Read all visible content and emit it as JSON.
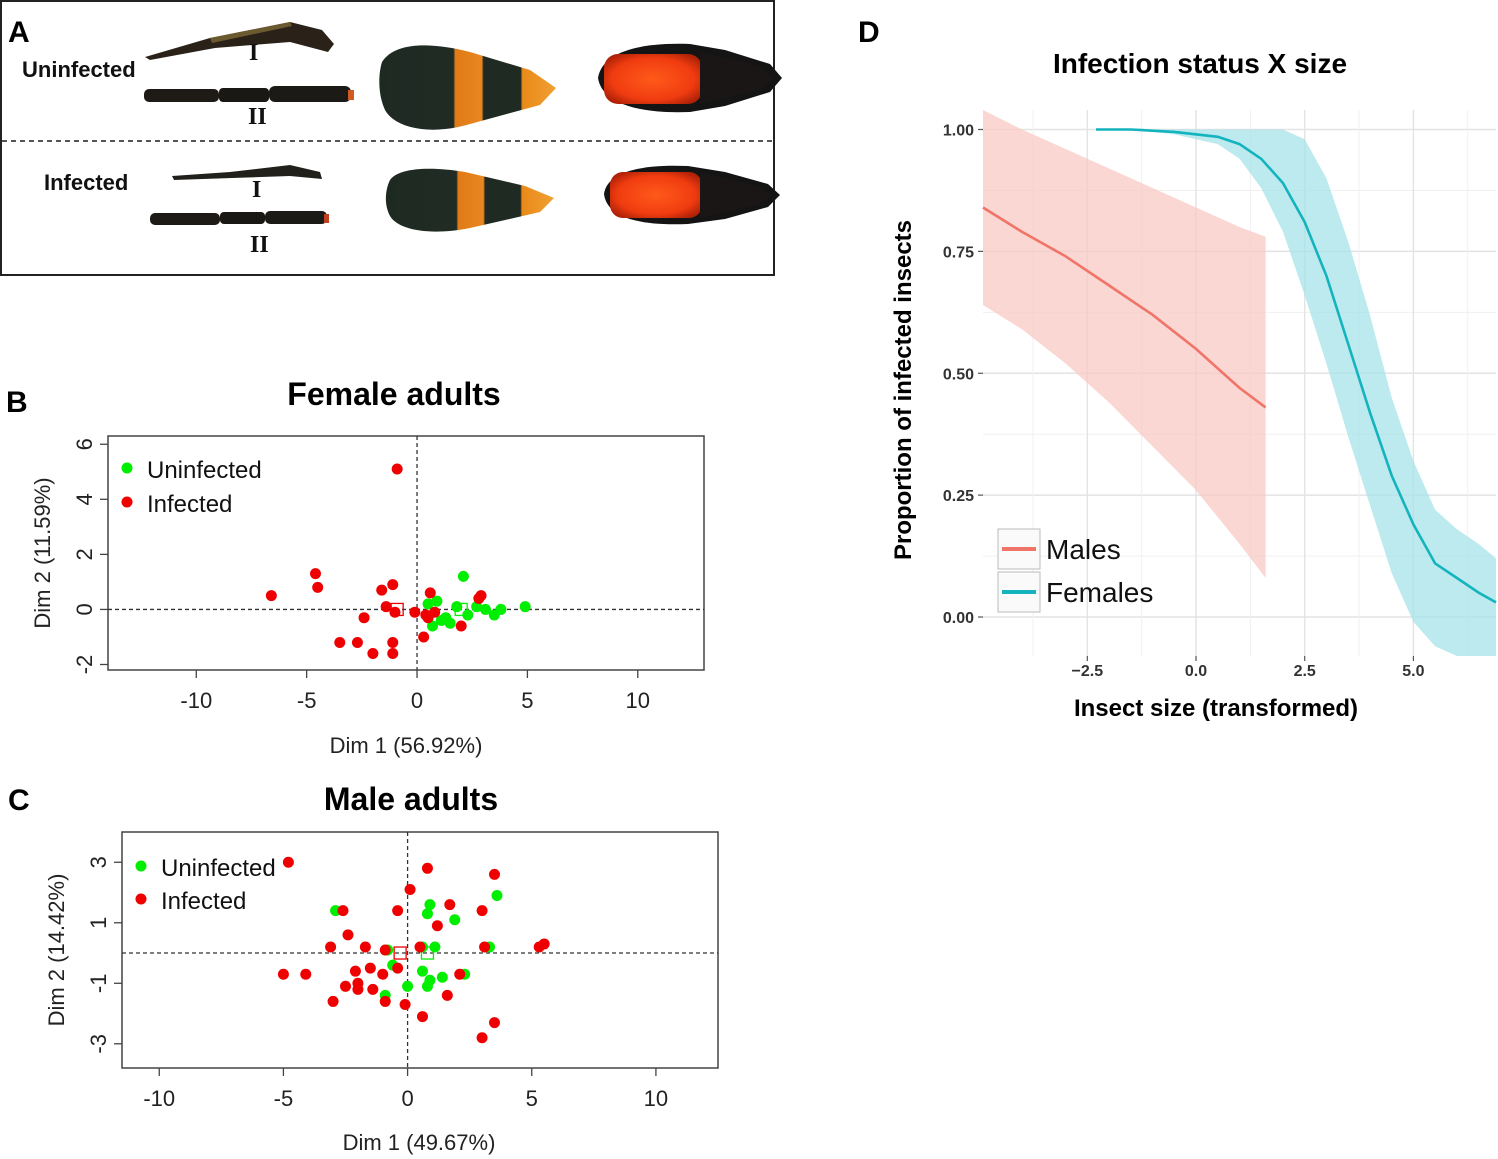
{
  "panels": {
    "A": {
      "label": "A",
      "rows": [
        {
          "status": "Uninfected",
          "antenna_labels": [
            "I",
            "II"
          ]
        },
        {
          "status": "Infected",
          "antenna_labels": [
            "I",
            "II"
          ]
        }
      ]
    },
    "B": {
      "label": "B"
    },
    "C": {
      "label": "C"
    },
    "D": {
      "label": "D"
    }
  },
  "colors": {
    "uninfected": "#00ee00",
    "infected": "#ee0000",
    "males": "#f07468",
    "males_ribbon": "#f8c9c4",
    "females": "#14b4be",
    "females_ribbon": "#a6e3e8"
  },
  "chart_data": [
    {
      "id": "B",
      "type": "scatter",
      "title": "Female adults",
      "xlabel": "Dim 1 (56.92%)",
      "ylabel": "Dim 2 (11.59%)",
      "xlim": [
        -14,
        13
      ],
      "ylim": [
        -2.2,
        6.3
      ],
      "xticks": [
        -10,
        -5,
        0,
        5,
        10
      ],
      "yticks": [
        -2,
        0,
        2,
        4,
        6
      ],
      "legend": {
        "position": "top-left",
        "entries": [
          "Uninfected",
          "Infected"
        ]
      },
      "series": [
        {
          "name": "Uninfected",
          "points": [
            [
              2.1,
              1.2
            ],
            [
              0.5,
              0.2
            ],
            [
              0.9,
              0.3
            ],
            [
              1.3,
              -0.3
            ],
            [
              1.5,
              -0.5
            ],
            [
              1.8,
              0.1
            ],
            [
              2.3,
              -0.2
            ],
            [
              3.1,
              0.0
            ],
            [
              3.5,
              -0.2
            ],
            [
              3.8,
              0.0
            ],
            [
              4.9,
              0.1
            ],
            [
              0.7,
              -0.6
            ],
            [
              1.1,
              -0.4
            ],
            [
              2.7,
              0.1
            ]
          ],
          "centroid": [
            2.0,
            0.0
          ]
        },
        {
          "name": "Infected",
          "points": [
            [
              -0.9,
              5.1
            ],
            [
              -6.6,
              0.5
            ],
            [
              -4.6,
              1.3
            ],
            [
              -4.5,
              0.8
            ],
            [
              -1.6,
              0.7
            ],
            [
              -1.1,
              0.9
            ],
            [
              -1.4,
              0.1
            ],
            [
              -1.0,
              -0.1
            ],
            [
              -0.1,
              -0.1
            ],
            [
              0.4,
              -0.2
            ],
            [
              0.6,
              0.6
            ],
            [
              0.8,
              -0.1
            ],
            [
              2.8,
              0.4
            ],
            [
              2.9,
              0.5
            ],
            [
              -2.4,
              -0.3
            ],
            [
              -3.5,
              -1.2
            ],
            [
              -2.7,
              -1.2
            ],
            [
              -2.0,
              -1.6
            ],
            [
              -1.1,
              -1.2
            ],
            [
              -1.1,
              -1.6
            ],
            [
              0.3,
              -1.0
            ],
            [
              2.0,
              -0.6
            ],
            [
              0.5,
              -0.3
            ]
          ],
          "centroid": [
            -0.9,
            0.0
          ]
        }
      ]
    },
    {
      "id": "C",
      "type": "scatter",
      "title": "Male adults",
      "xlabel": "Dim 1 (49.67%)",
      "ylabel": "Dim 2 (14.42%)",
      "xlim": [
        -11.5,
        12.5
      ],
      "ylim": [
        -3.8,
        4.0
      ],
      "xticks": [
        -10,
        -5,
        0,
        5,
        10
      ],
      "yticks": [
        -3,
        -1,
        1,
        3
      ],
      "legend": {
        "position": "top-left",
        "entries": [
          "Uninfected",
          "Infected"
        ]
      },
      "series": [
        {
          "name": "Uninfected",
          "points": [
            [
              -2.9,
              1.4
            ],
            [
              0.8,
              1.3
            ],
            [
              0.9,
              1.6
            ],
            [
              1.9,
              1.1
            ],
            [
              3.6,
              1.9
            ],
            [
              -0.8,
              0.1
            ],
            [
              0.6,
              0.2
            ],
            [
              1.1,
              0.2
            ],
            [
              -0.6,
              -0.4
            ],
            [
              0.6,
              -0.6
            ],
            [
              0.9,
              -0.9
            ],
            [
              1.4,
              -0.8
            ],
            [
              2.3,
              -0.7
            ],
            [
              -0.9,
              -1.4
            ],
            [
              0.0,
              -1.1
            ],
            [
              0.8,
              -1.1
            ],
            [
              3.3,
              0.2
            ]
          ],
          "centroid": [
            0.8,
            0.0
          ]
        },
        {
          "name": "Infected",
          "points": [
            [
              -4.8,
              3.0
            ],
            [
              0.8,
              2.8
            ],
            [
              3.5,
              2.6
            ],
            [
              0.1,
              2.1
            ],
            [
              1.7,
              1.6
            ],
            [
              -2.6,
              1.4
            ],
            [
              -0.4,
              1.4
            ],
            [
              1.2,
              0.9
            ],
            [
              3.0,
              1.4
            ],
            [
              -2.4,
              0.6
            ],
            [
              -3.1,
              0.2
            ],
            [
              -0.9,
              0.1
            ],
            [
              0.5,
              0.2
            ],
            [
              3.1,
              0.2
            ],
            [
              5.5,
              0.3
            ],
            [
              5.3,
              0.2
            ],
            [
              -5.0,
              -0.7
            ],
            [
              -4.1,
              -0.7
            ],
            [
              -2.1,
              -0.6
            ],
            [
              -2.0,
              -1.0
            ],
            [
              -1.5,
              -0.5
            ],
            [
              -1.0,
              -0.7
            ],
            [
              2.1,
              -0.7
            ],
            [
              -2.5,
              -1.1
            ],
            [
              -2.0,
              -1.2
            ],
            [
              -1.4,
              -1.2
            ],
            [
              -0.1,
              -1.7
            ],
            [
              1.6,
              -1.4
            ],
            [
              -3.0,
              -1.6
            ],
            [
              -0.9,
              -1.6
            ],
            [
              0.6,
              -2.1
            ],
            [
              3.5,
              -2.3
            ],
            [
              3.0,
              -2.8
            ],
            [
              -1.7,
              0.2
            ],
            [
              -0.4,
              -0.5
            ]
          ],
          "centroid": [
            -0.3,
            0.0
          ]
        }
      ]
    },
    {
      "id": "D",
      "type": "line",
      "title": "Infection status  X size",
      "xlabel": "Insect size (transformed)",
      "ylabel": "Proportion of infected insects",
      "xlim": [
        -4.9,
        6.9
      ],
      "ylim": [
        -0.08,
        1.04
      ],
      "xticks": [
        -2.5,
        0.0,
        2.5,
        5.0
      ],
      "xtick_labels": [
        "−2.5",
        "0.0",
        "2.5",
        "5.0"
      ],
      "yticks": [
        0.0,
        0.25,
        0.5,
        0.75,
        1.0
      ],
      "ytick_labels": [
        "0.00",
        "0.25",
        "0.50",
        "0.75",
        "1.00"
      ],
      "legend": {
        "position": "bottom-left",
        "entries": [
          "Males",
          "Females"
        ]
      },
      "series": [
        {
          "name": "Males",
          "x": [
            -4.9,
            -4.0,
            -3.0,
            -2.0,
            -1.0,
            0.0,
            1.0,
            1.6
          ],
          "y": [
            0.84,
            0.79,
            0.74,
            0.68,
            0.62,
            0.55,
            0.47,
            0.43
          ],
          "lower": [
            0.64,
            0.59,
            0.52,
            0.44,
            0.35,
            0.26,
            0.15,
            0.08
          ],
          "upper": [
            1.04,
            1.0,
            0.96,
            0.92,
            0.88,
            0.84,
            0.8,
            0.78
          ]
        },
        {
          "name": "Females",
          "x": [
            -2.3,
            -1.5,
            -0.5,
            0.5,
            1.0,
            1.5,
            2.0,
            2.5,
            3.0,
            3.5,
            4.0,
            4.5,
            5.0,
            5.5,
            6.0,
            6.5,
            6.9
          ],
          "y": [
            1.0,
            1.0,
            0.995,
            0.985,
            0.97,
            0.94,
            0.89,
            0.81,
            0.7,
            0.56,
            0.42,
            0.29,
            0.19,
            0.11,
            0.08,
            0.05,
            0.03
          ],
          "lower": [
            1.0,
            1.0,
            0.99,
            0.97,
            0.94,
            0.88,
            0.79,
            0.66,
            0.52,
            0.37,
            0.23,
            0.09,
            -0.01,
            -0.06,
            -0.08,
            -0.08,
            -0.08
          ],
          "upper": [
            1.0,
            1.0,
            1.0,
            1.0,
            1.0,
            1.0,
            1.0,
            0.98,
            0.9,
            0.77,
            0.62,
            0.45,
            0.32,
            0.22,
            0.18,
            0.15,
            0.12
          ]
        }
      ]
    }
  ]
}
